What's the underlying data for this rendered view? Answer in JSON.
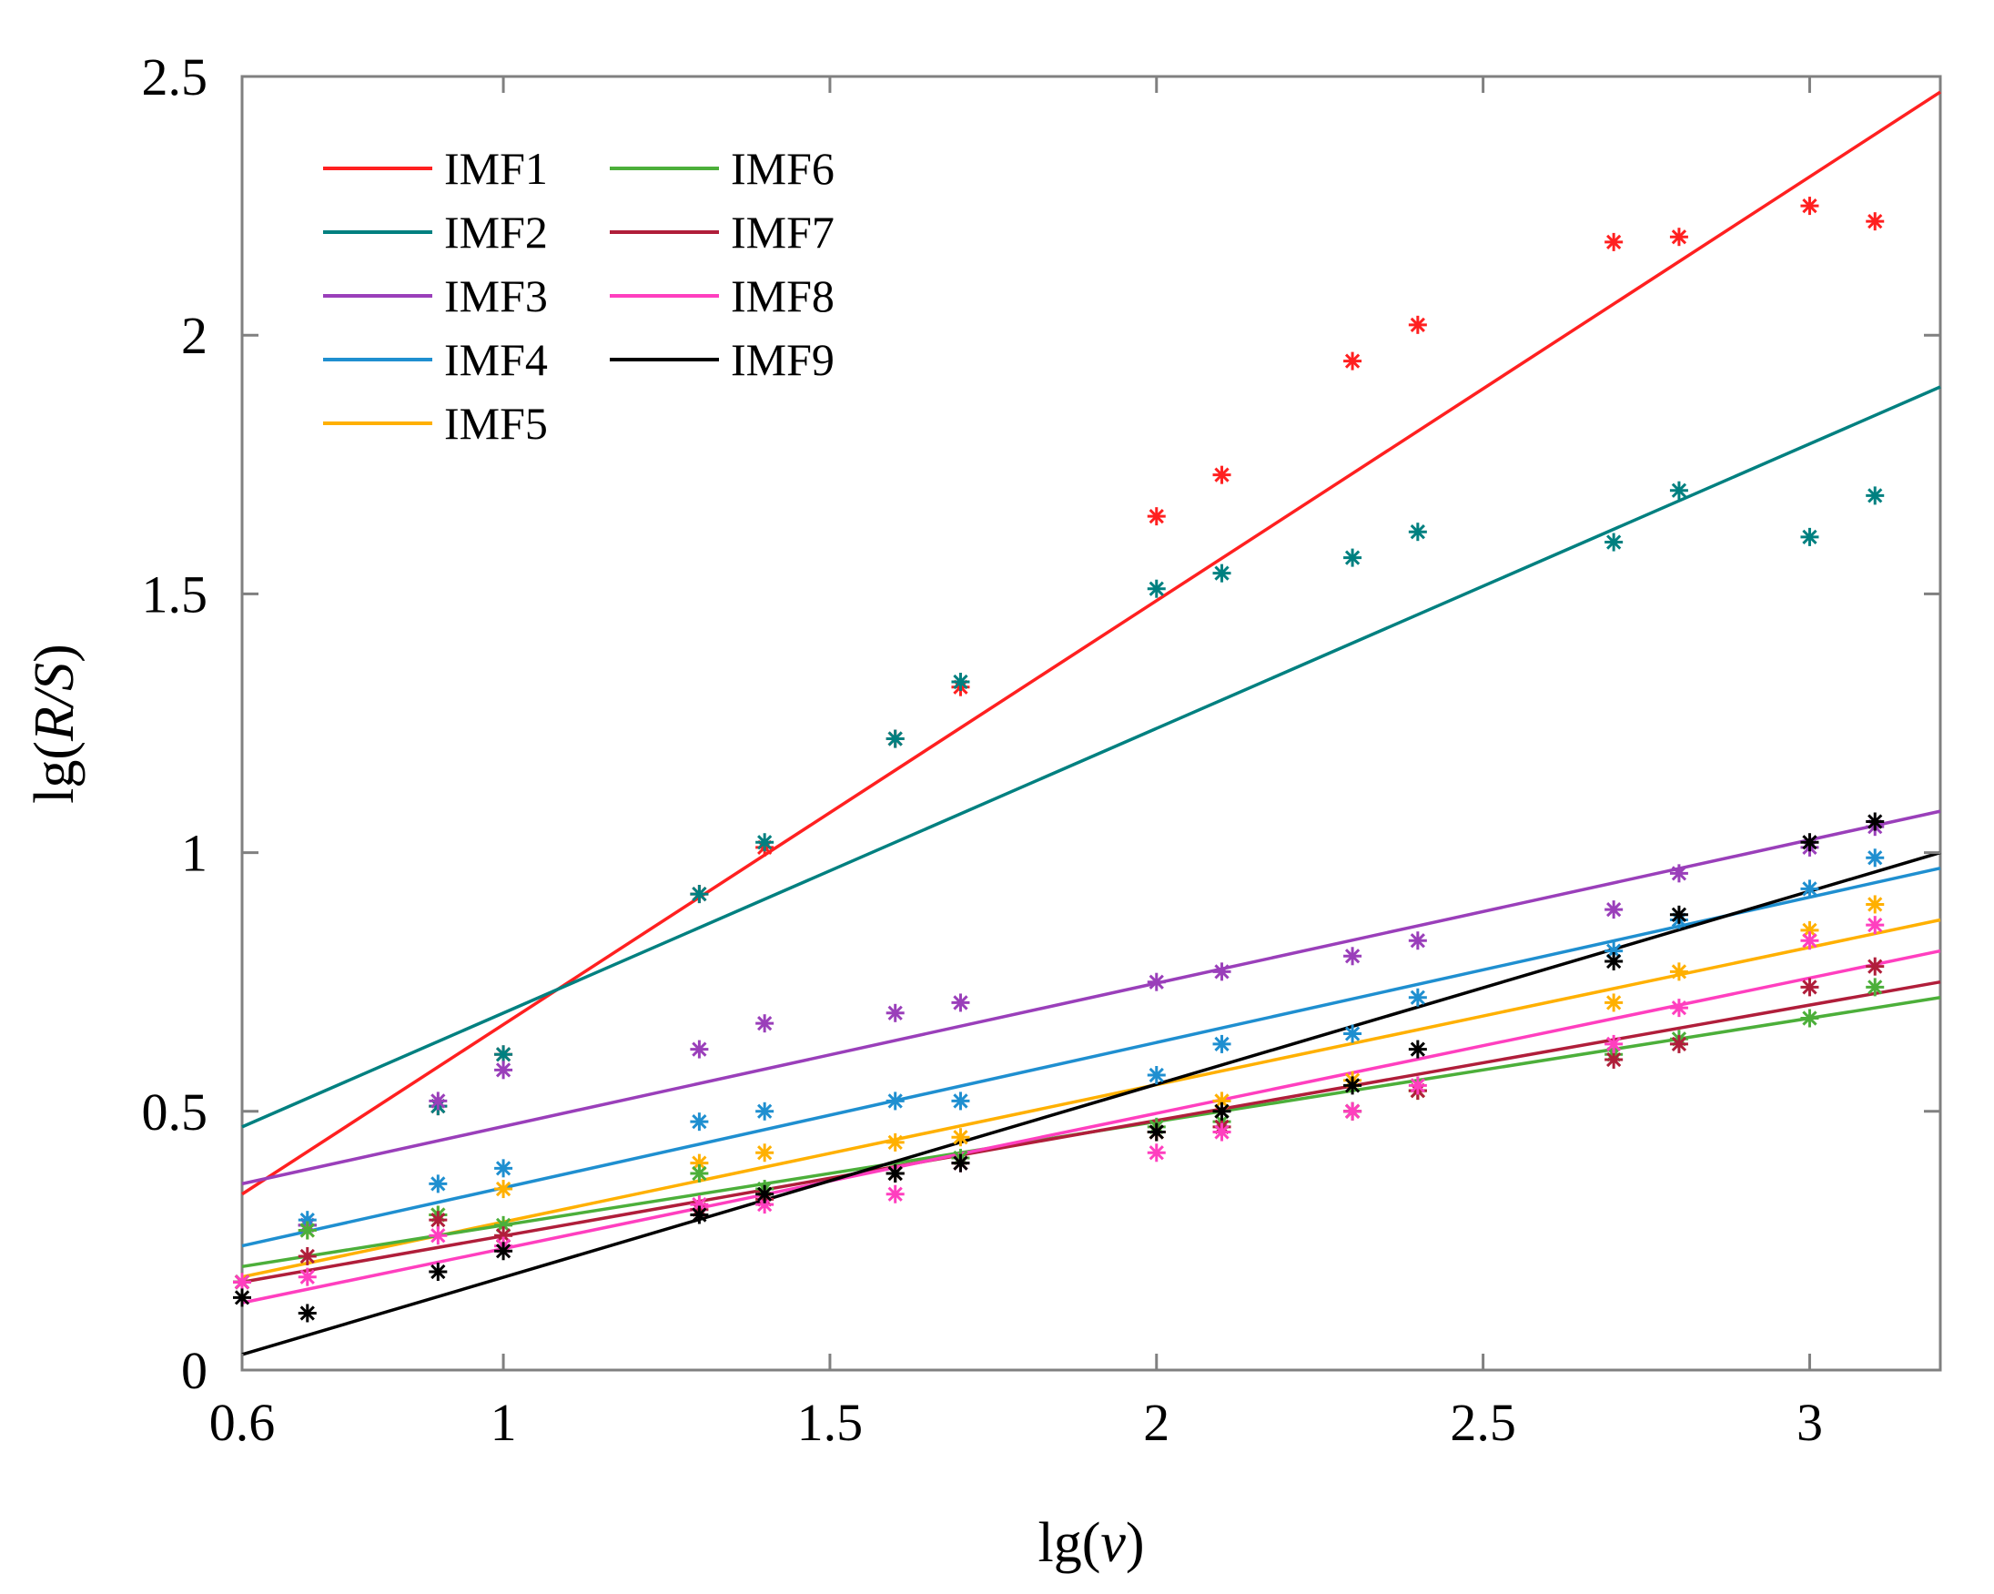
{
  "chart_data": {
    "type": "scatter",
    "title": "",
    "xlabel_prefix": "lg(",
    "xlabel_var": "v",
    "xlabel_suffix": ")",
    "ylabel_prefix": "lg(",
    "ylabel_var": "R/S",
    "ylabel_suffix": ")",
    "xlim": [
      0.6,
      3.2
    ],
    "ylim": [
      0,
      2.5
    ],
    "xticks": [
      0.6,
      1,
      1.5,
      2,
      2.5,
      3
    ],
    "xtick_labels": [
      "0.6",
      "1",
      "1.5",
      "2",
      "2.5",
      "3"
    ],
    "yticks": [
      0,
      0.5,
      1,
      1.5,
      2,
      2.5
    ],
    "ytick_labels": [
      "0",
      "0.5",
      "1",
      "1.5",
      "2",
      "2.5"
    ],
    "x": [
      0.6,
      0.7,
      0.9,
      1.0,
      1.3,
      1.4,
      1.6,
      1.7,
      2.0,
      2.1,
      2.3,
      2.4,
      2.7,
      2.8,
      3.0,
      3.1
    ],
    "legend_position": "top-left",
    "series": [
      {
        "name": "IMF1",
        "color": "#ff2020",
        "values": [
          0.17,
          0.28,
          0.51,
          0.61,
          0.92,
          1.01,
          1.22,
          1.32,
          1.65,
          1.73,
          1.95,
          2.02,
          2.18,
          2.19,
          2.25,
          2.22
        ],
        "fit": [
          0.34,
          2.47
        ]
      },
      {
        "name": "IMF2",
        "color": "#008080",
        "values": [
          0.17,
          0.28,
          0.51,
          0.61,
          0.92,
          1.02,
          1.22,
          1.33,
          1.51,
          1.54,
          1.57,
          1.62,
          1.6,
          1.7,
          1.61,
          1.69
        ],
        "fit": [
          0.47,
          1.9
        ]
      },
      {
        "name": "IMF3",
        "color": "#9a3fba",
        "values": [
          0.17,
          0.28,
          0.52,
          0.58,
          0.62,
          0.67,
          0.69,
          0.71,
          0.75,
          0.77,
          0.8,
          0.83,
          0.89,
          0.96,
          1.01,
          1.05
        ],
        "fit": [
          0.36,
          1.08
        ]
      },
      {
        "name": "IMF4",
        "color": "#1f8fd0",
        "values": [
          0.17,
          0.29,
          0.36,
          0.39,
          0.48,
          0.5,
          0.52,
          0.52,
          0.57,
          0.63,
          0.65,
          0.72,
          0.81,
          0.87,
          0.93,
          0.99
        ],
        "fit": [
          0.24,
          0.97
        ]
      },
      {
        "name": "IMF5",
        "color": "#ffb000",
        "values": [
          0.17,
          0.27,
          0.3,
          0.35,
          0.4,
          0.42,
          0.44,
          0.45,
          0.46,
          0.52,
          0.56,
          0.54,
          0.71,
          0.77,
          0.85,
          0.9
        ],
        "fit": [
          0.18,
          0.87
        ]
      },
      {
        "name": "IMF6",
        "color": "#4caf3a",
        "values": [
          0.17,
          0.27,
          0.3,
          0.28,
          0.38,
          0.35,
          0.38,
          0.41,
          0.47,
          0.48,
          0.5,
          0.54,
          0.61,
          0.64,
          0.68,
          0.74
        ],
        "fit": [
          0.2,
          0.72
        ]
      },
      {
        "name": "IMF7",
        "color": "#b01e3a",
        "values": [
          0.17,
          0.22,
          0.29,
          0.26,
          0.31,
          0.33,
          0.38,
          0.4,
          0.46,
          0.47,
          0.5,
          0.54,
          0.6,
          0.63,
          0.74,
          0.78
        ],
        "fit": [
          0.17,
          0.75
        ]
      },
      {
        "name": "IMF8",
        "color": "#ff3fbf",
        "values": [
          0.17,
          0.18,
          0.26,
          0.24,
          0.32,
          0.32,
          0.34,
          0.4,
          0.42,
          0.46,
          0.5,
          0.55,
          0.63,
          0.7,
          0.83,
          0.86
        ],
        "fit": [
          0.13,
          0.81
        ]
      },
      {
        "name": "IMF9",
        "color": "#000000",
        "values": [
          0.14,
          0.11,
          0.19,
          0.23,
          0.3,
          0.34,
          0.38,
          0.4,
          0.46,
          0.5,
          0.55,
          0.62,
          0.79,
          0.88,
          1.02,
          1.06
        ],
        "fit": [
          0.03,
          1.0
        ]
      }
    ]
  }
}
